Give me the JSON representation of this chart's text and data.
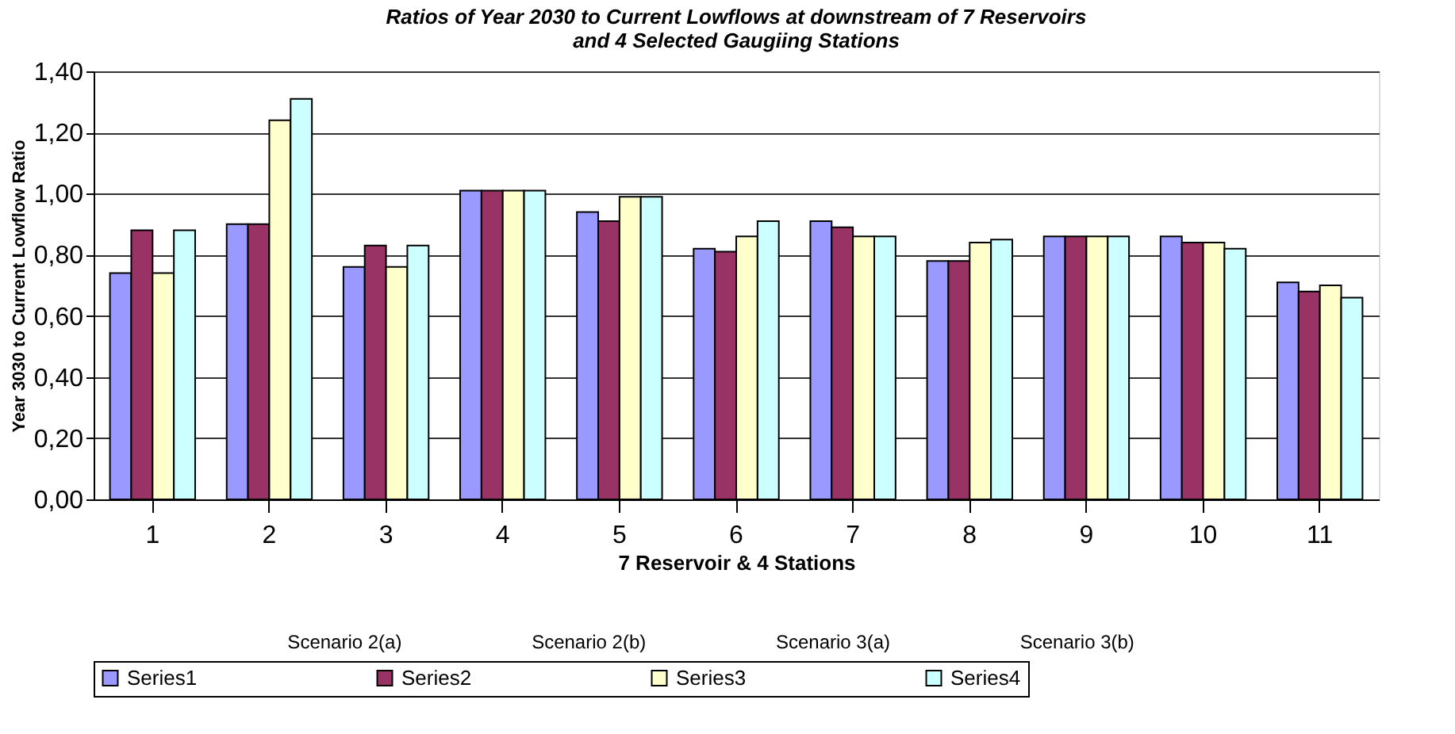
{
  "chart_data": {
    "type": "bar",
    "title": "Ratios of Year 2030 to Current Lowflows at downstream of  7 Reservoirs and  4 Selected Gaugiing Stations",
    "xlabel": "7 Reservoir & 4 Stations",
    "ylabel": "Year 3030 to Current Lowflow Ratio",
    "categories": [
      "1",
      "2",
      "3",
      "4",
      "5",
      "6",
      "7",
      "8",
      "9",
      "10",
      "11"
    ],
    "series": [
      {
        "name": "Series1",
        "color": "#9999ff",
        "values": [
          0.74,
          0.9,
          0.76,
          1.01,
          0.94,
          0.82,
          0.91,
          0.78,
          0.86,
          0.86,
          0.71
        ]
      },
      {
        "name": "Series2",
        "color": "#993366",
        "values": [
          0.88,
          0.9,
          0.83,
          1.01,
          0.91,
          0.81,
          0.89,
          0.78,
          0.86,
          0.84,
          0.68
        ]
      },
      {
        "name": "Series3",
        "color": "#ffffcc",
        "values": [
          0.74,
          1.24,
          0.76,
          1.01,
          0.99,
          0.86,
          0.86,
          0.84,
          0.86,
          0.84,
          0.7
        ]
      },
      {
        "name": "Series4",
        "color": "#ccffff",
        "values": [
          0.88,
          1.31,
          0.83,
          1.01,
          0.99,
          0.91,
          0.86,
          0.85,
          0.86,
          0.82,
          0.66
        ]
      }
    ],
    "ylim": [
      0,
      1.4
    ],
    "yticks": [
      {
        "value": 0,
        "label": "0,00"
      },
      {
        "value": 0.2,
        "label": "0,20"
      },
      {
        "value": 0.4,
        "label": "0,40"
      },
      {
        "value": 0.6,
        "label": "0,60"
      },
      {
        "value": 0.8,
        "label": "0,80"
      },
      {
        "value": 1.0,
        "label": "1,00"
      },
      {
        "value": 1.2,
        "label": "1,20"
      },
      {
        "value": 1.4,
        "label": "1,40"
      }
    ],
    "grid": "y",
    "legend": "bottom",
    "annotations": [
      "Scenario 2(a)",
      "Scenario 2(b)",
      "Scenario 3(a)",
      "Scenario 3(b)"
    ]
  }
}
